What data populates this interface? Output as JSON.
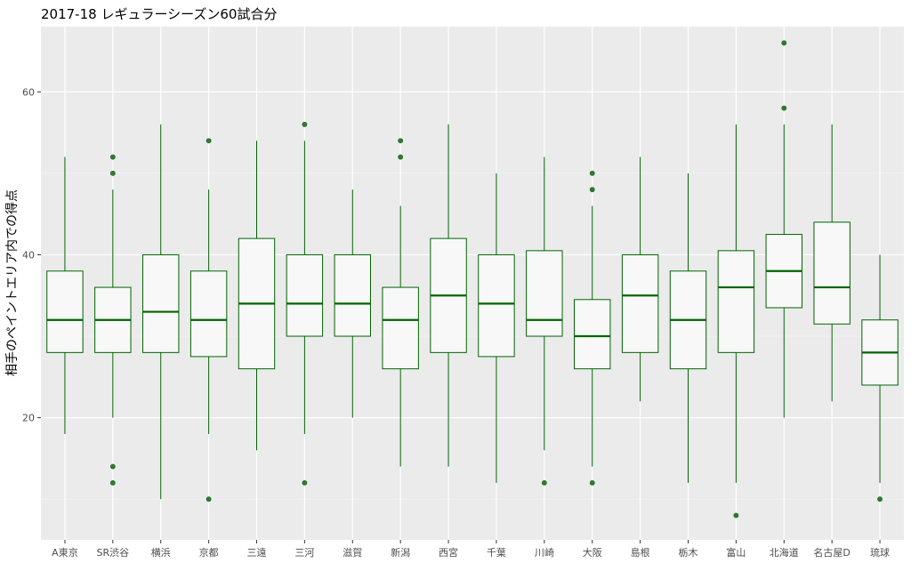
{
  "chart_data": {
    "type": "box",
    "title": "2017-18 レギュラーシーズン60試合分",
    "xlabel": "",
    "ylabel": "相手のペイントエリア内での得点",
    "ylim": [
      5,
      68
    ],
    "yticks": [
      20,
      40,
      60
    ],
    "grid": true,
    "categories": [
      "A東京",
      "SR渋谷",
      "横浜",
      "京都",
      "三遠",
      "三河",
      "滋賀",
      "新潟",
      "西宮",
      "千葉",
      "川崎",
      "大阪",
      "島根",
      "栃木",
      "富山",
      "北海道",
      "名古屋D",
      "琉球"
    ],
    "boxes": [
      {
        "min": 18,
        "q1": 28,
        "median": 32,
        "q3": 38,
        "max": 52,
        "outliers": []
      },
      {
        "min": 20,
        "q1": 28,
        "median": 32,
        "q3": 36,
        "max": 48,
        "outliers": [
          52,
          50,
          14,
          12
        ]
      },
      {
        "min": 10,
        "q1": 28,
        "median": 33,
        "q3": 40,
        "max": 56,
        "outliers": []
      },
      {
        "min": 18,
        "q1": 27.5,
        "median": 32,
        "q3": 38,
        "max": 48,
        "outliers": [
          54,
          10
        ]
      },
      {
        "min": 16,
        "q1": 26,
        "median": 34,
        "q3": 42,
        "max": 54,
        "outliers": []
      },
      {
        "min": 18,
        "q1": 30,
        "median": 34,
        "q3": 40,
        "max": 54,
        "outliers": [
          56,
          12
        ]
      },
      {
        "min": 20,
        "q1": 30,
        "median": 34,
        "q3": 40,
        "max": 48,
        "outliers": []
      },
      {
        "min": 14,
        "q1": 26,
        "median": 32,
        "q3": 36,
        "max": 46,
        "outliers": [
          54,
          52
        ]
      },
      {
        "min": 14,
        "q1": 28,
        "median": 35,
        "q3": 42,
        "max": 56,
        "outliers": []
      },
      {
        "min": 12,
        "q1": 27.5,
        "median": 34,
        "q3": 40,
        "max": 50,
        "outliers": []
      },
      {
        "min": 16,
        "q1": 30,
        "median": 32,
        "q3": 40.5,
        "max": 52,
        "outliers": [
          12
        ]
      },
      {
        "min": 14,
        "q1": 26,
        "median": 30,
        "q3": 34.5,
        "max": 46,
        "outliers": [
          50,
          48,
          12
        ]
      },
      {
        "min": 22,
        "q1": 28,
        "median": 35,
        "q3": 40,
        "max": 52,
        "outliers": []
      },
      {
        "min": 12,
        "q1": 26,
        "median": 32,
        "q3": 38,
        "max": 50,
        "outliers": []
      },
      {
        "min": 12,
        "q1": 28,
        "median": 36,
        "q3": 40.5,
        "max": 56,
        "outliers": [
          8
        ]
      },
      {
        "min": 20,
        "q1": 33.5,
        "median": 38,
        "q3": 42.5,
        "max": 56,
        "outliers": [
          66,
          58
        ]
      },
      {
        "min": 22,
        "q1": 31.5,
        "median": 36,
        "q3": 44,
        "max": 56,
        "outliers": []
      },
      {
        "min": 12,
        "q1": 24,
        "median": 28,
        "q3": 32,
        "max": 40,
        "outliers": [
          10
        ]
      }
    ],
    "colors": {
      "panel": "#ebebeb",
      "grid_major": "#ffffff",
      "box_fill": "#f8f8f8",
      "box_stroke": "#006400",
      "outlier": "#2e7d32",
      "tick_text": "#4d4d4d"
    }
  }
}
